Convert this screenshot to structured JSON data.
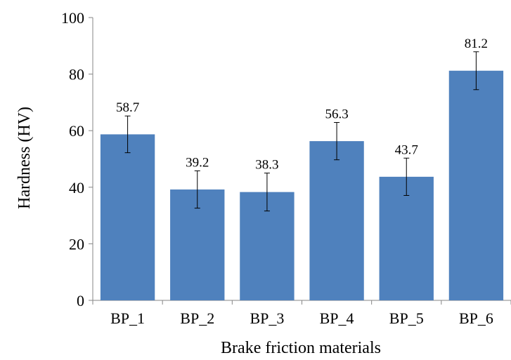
{
  "chart_data": {
    "type": "bar",
    "title": "",
    "xlabel": "Brake friction materials",
    "ylabel": "Hardness (HV)",
    "categories": [
      "BP_1",
      "BP_2",
      "BP_3",
      "BP_4",
      "BP_5",
      "BP_6"
    ],
    "values": [
      58.7,
      39.2,
      38.3,
      56.3,
      43.7,
      81.2
    ],
    "data_labels": [
      "58.7",
      "39.2",
      "38.3",
      "56.3",
      "43.7",
      "81.2"
    ],
    "error": [
      6.5,
      6.6,
      6.7,
      6.6,
      6.6,
      6.7
    ],
    "ylim": [
      0,
      100
    ],
    "yticks": [
      0,
      20,
      40,
      60,
      80,
      100
    ],
    "ytick_labels": [
      "0",
      "20",
      "40",
      "60",
      "80",
      "100"
    ],
    "grid": false,
    "legend": "none",
    "bar_color": "#4f81bd"
  }
}
